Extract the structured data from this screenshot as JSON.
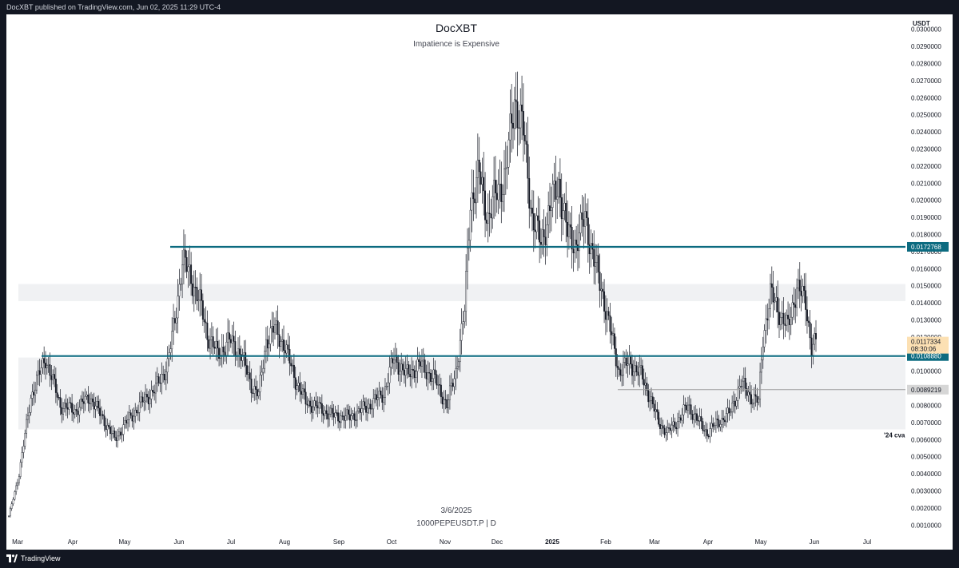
{
  "header": {
    "published": "DocXBT published on TradingView.com, Jun 02, 2025 11:29 UTC-4"
  },
  "footer": {
    "brand": "TradingView"
  },
  "chart_data": {
    "type": "candlestick",
    "title": "DocXBT",
    "subtitle": "Impatience is Expensive",
    "symbol": "1000PEPEUSDT.P | D",
    "date_label": "3/6/2025",
    "currency": "USDT",
    "y_ticks": [
      "0.0300000",
      "0.0290000",
      "0.0280000",
      "0.0270000",
      "0.0260000",
      "0.0250000",
      "0.0240000",
      "0.0230000",
      "0.0220000",
      "0.0210000",
      "0.0200000",
      "0.0190000",
      "0.0180000",
      "0.0170000",
      "0.0160000",
      "0.0150000",
      "0.0140000",
      "0.0130000",
      "0.0120000",
      "0.0110000",
      "0.0100000",
      "0.0090000",
      "0.0080000",
      "0.0070000",
      "0.0060000",
      "0.0050000",
      "0.0040000",
      "0.0030000",
      "0.0020000",
      "0.0010000"
    ],
    "ylim": [
      0.0005,
      0.0305
    ],
    "x_ticks": [
      "Mar",
      "Apr",
      "May",
      "Jun",
      "Jul",
      "Aug",
      "Sep",
      "Oct",
      "Nov",
      "Dec",
      "2025",
      "Feb",
      "Mar",
      "Apr",
      "May",
      "Jun",
      "Jul"
    ],
    "levels": [
      {
        "name": "resistance",
        "value": 0.0172768,
        "label": "0.0172768",
        "color": "#0c6b80"
      },
      {
        "name": "support",
        "value": 0.010888,
        "label": "0.0108880",
        "color": "#0c6b80"
      },
      {
        "name": "grey-line",
        "value": 0.0089219,
        "label": "0.0089219",
        "color": "#9e9e9e"
      }
    ],
    "zones": [
      {
        "name": "upper-zone",
        "from": 0.0141,
        "to": 0.0151
      },
      {
        "name": "range-24",
        "from": 0.0066,
        "to": 0.0108,
        "label": "'24 cva"
      }
    ],
    "last_price": {
      "value": 0.0117334,
      "label": "0.0117334",
      "countdown": "08:30:06"
    },
    "anchors": [
      [
        0,
        0.0015
      ],
      [
        7,
        0.004
      ],
      [
        15,
        0.0085
      ],
      [
        25,
        0.0108
      ],
      [
        35,
        0.008
      ],
      [
        45,
        0.0077
      ],
      [
        55,
        0.0085
      ],
      [
        65,
        0.0071
      ],
      [
        72,
        0.006
      ],
      [
        80,
        0.007
      ],
      [
        92,
        0.0083
      ],
      [
        100,
        0.009
      ],
      [
        108,
        0.0104
      ],
      [
        113,
        0.013
      ],
      [
        118,
        0.0165
      ],
      [
        124,
        0.0155
      ],
      [
        130,
        0.014
      ],
      [
        135,
        0.0122
      ],
      [
        142,
        0.011
      ],
      [
        150,
        0.0118
      ],
      [
        158,
        0.011
      ],
      [
        165,
        0.0092
      ],
      [
        170,
        0.0086
      ],
      [
        175,
        0.0118
      ],
      [
        181,
        0.0125
      ],
      [
        187,
        0.0116
      ],
      [
        195,
        0.0095
      ],
      [
        202,
        0.0082
      ],
      [
        210,
        0.0079
      ],
      [
        220,
        0.0074
      ],
      [
        232,
        0.0073
      ],
      [
        245,
        0.008
      ],
      [
        255,
        0.0087
      ],
      [
        262,
        0.0108
      ],
      [
        270,
        0.0098
      ],
      [
        280,
        0.0104
      ],
      [
        290,
        0.0095
      ],
      [
        298,
        0.008
      ],
      [
        304,
        0.01
      ],
      [
        310,
        0.0135
      ],
      [
        314,
        0.02
      ],
      [
        320,
        0.0215
      ],
      [
        326,
        0.019
      ],
      [
        332,
        0.0205
      ],
      [
        338,
        0.0215
      ],
      [
        344,
        0.026
      ],
      [
        350,
        0.024
      ],
      [
        356,
        0.019
      ],
      [
        362,
        0.0175
      ],
      [
        368,
        0.0195
      ],
      [
        374,
        0.021
      ],
      [
        380,
        0.018
      ],
      [
        386,
        0.0175
      ],
      [
        392,
        0.019
      ],
      [
        398,
        0.0165
      ],
      [
        404,
        0.0145
      ],
      [
        410,
        0.012
      ],
      [
        415,
        0.01
      ],
      [
        422,
        0.0105
      ],
      [
        430,
        0.0098
      ],
      [
        436,
        0.0085
      ],
      [
        442,
        0.007
      ],
      [
        448,
        0.0064
      ],
      [
        455,
        0.0071
      ],
      [
        462,
        0.008
      ],
      [
        468,
        0.0072
      ],
      [
        475,
        0.0064
      ],
      [
        482,
        0.007
      ],
      [
        490,
        0.0075
      ],
      [
        498,
        0.0093
      ],
      [
        505,
        0.0085
      ],
      [
        510,
        0.0082
      ],
      [
        513,
        0.012
      ],
      [
        518,
        0.0145
      ],
      [
        524,
        0.0135
      ],
      [
        530,
        0.0125
      ],
      [
        536,
        0.015
      ],
      [
        542,
        0.014
      ],
      [
        546,
        0.0115
      ],
      [
        549,
        0.0117
      ]
    ]
  }
}
